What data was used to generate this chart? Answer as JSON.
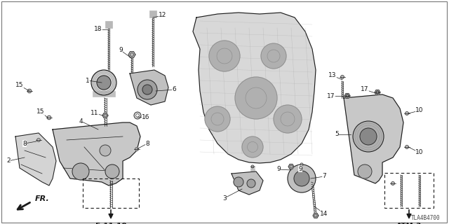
{
  "bg_color": "#ffffff",
  "fig_width": 6.4,
  "fig_height": 3.2,
  "dpi": 100,
  "line_color": "#1a1a1a",
  "text_color": "#1a1a1a",
  "fs": 6.5,
  "fs_ref": 7.5,
  "fs_small": 5.5
}
